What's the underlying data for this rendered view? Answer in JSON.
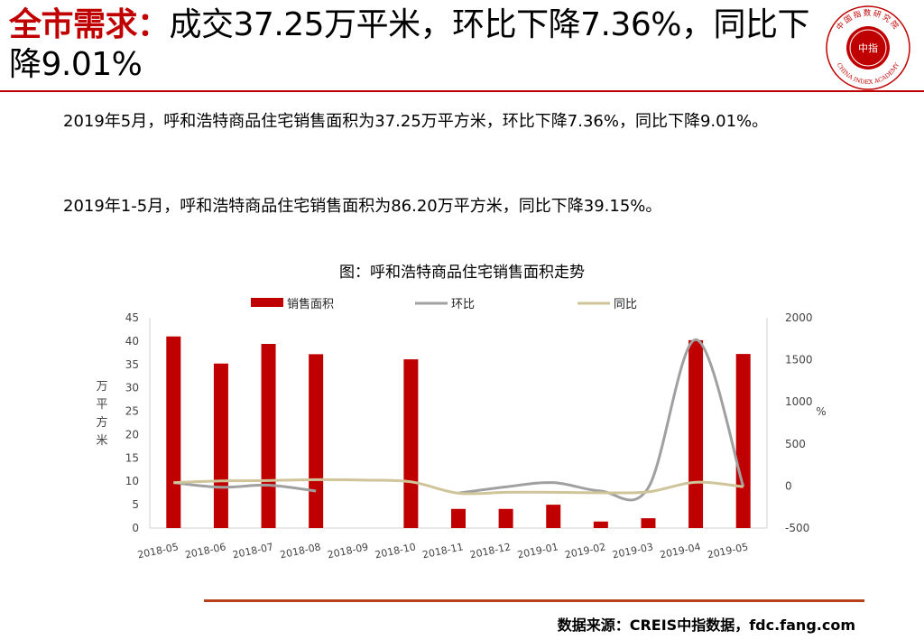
{
  "header": {
    "title_lead": "全市需求：",
    "title_rest": "成交37.25万平米，环比下降7.36%，同比下降9.01%"
  },
  "logo": {
    "center_text": "中指",
    "arc_text": "中国指数研究院",
    "ring_text": "CHINA INDEX ACADEMY",
    "color": "#c00000"
  },
  "body": {
    "paragraph1": "2019年5月，呼和浩特商品住宅销售面积为37.25万平方米，环比下降7.36%，同比下降9.01%。",
    "paragraph2": "2019年1-5月，呼和浩特商品住宅销售面积为86.20万平方米，同比下降39.15%。"
  },
  "chart_data": {
    "type": "bar",
    "title": "图：呼和浩特商品住宅销售面积走势",
    "categories": [
      "2018-05",
      "2018-06",
      "2018-07",
      "2018-08",
      "2018-09",
      "2018-10",
      "2018-11",
      "2018-12",
      "2019-01",
      "2019-02",
      "2019-03",
      "2019-04",
      "2019-05"
    ],
    "ylabel": "万平方米",
    "y2label": "%",
    "ylim": [
      0,
      45
    ],
    "yticks": [
      0,
      5,
      10,
      15,
      20,
      25,
      30,
      35,
      40,
      45
    ],
    "y2lim": [
      -500,
      2000
    ],
    "y2ticks": [
      -500,
      0,
      500,
      1000,
      1500,
      2000
    ],
    "legend_position": "top",
    "series": [
      {
        "name": "销售面积",
        "type": "bar",
        "axis": "left",
        "color": "#c00000",
        "values": [
          41.0,
          35.2,
          39.4,
          37.2,
          null,
          36.1,
          4.1,
          4.1,
          5.0,
          1.4,
          2.1,
          40.2,
          37.25
        ]
      },
      {
        "name": "环比",
        "type": "line",
        "axis": "right",
        "color": "#a0a0a0",
        "values": [
          40,
          -15,
          10,
          -60,
          null,
          null,
          -85,
          -10,
          40,
          -60,
          -20,
          1740,
          -7.36
        ]
      },
      {
        "name": "同比",
        "type": "line",
        "axis": "right",
        "color": "#cfc49a",
        "values": [
          40,
          60,
          65,
          75,
          70,
          50,
          -85,
          -75,
          -75,
          -80,
          -70,
          45,
          -9.01
        ]
      }
    ]
  },
  "footer": {
    "source": "数据来源：CREIS中指数据，fdc.fang.com"
  }
}
